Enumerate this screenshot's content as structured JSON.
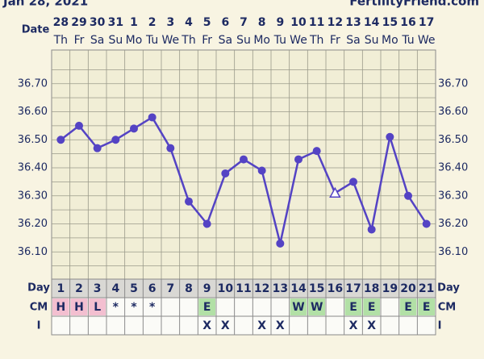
{
  "chart_data": {
    "type": "line",
    "header_date": "Jan 28, 2021",
    "site": "FertilityFriend.com",
    "date_label": "Date",
    "dates": [
      "28",
      "29",
      "30",
      "31",
      "1",
      "2",
      "3",
      "4",
      "5",
      "6",
      "7",
      "8",
      "9",
      "10",
      "11",
      "12",
      "13",
      "14",
      "15",
      "16",
      "17"
    ],
    "weekdays": [
      "Th",
      "Fr",
      "Sa",
      "Su",
      "Mo",
      "Tu",
      "We",
      "Th",
      "Fr",
      "Sa",
      "Su",
      "Mo",
      "Tu",
      "We",
      "Th",
      "Fr",
      "Sa",
      "Su",
      "Mo",
      "Tu",
      "We"
    ],
    "day_label": "Day",
    "categories": [
      "1",
      "2",
      "3",
      "4",
      "5",
      "6",
      "7",
      "8",
      "9",
      "10",
      "11",
      "12",
      "13",
      "14",
      "15",
      "16",
      "17",
      "18",
      "19",
      "20",
      "21"
    ],
    "values": [
      36.5,
      36.55,
      36.47,
      36.5,
      36.54,
      36.58,
      36.47,
      36.28,
      36.2,
      36.38,
      36.43,
      36.39,
      36.13,
      36.43,
      36.46,
      36.31,
      36.35,
      36.18,
      36.51,
      36.3,
      36.2
    ],
    "markers": [
      "circle",
      "circle",
      "circle",
      "circle",
      "circle",
      "circle",
      "circle",
      "circle",
      "circle",
      "circle",
      "circle",
      "circle",
      "circle",
      "circle",
      "circle",
      "triangle",
      "circle",
      "circle",
      "circle",
      "circle",
      "circle"
    ],
    "color": "#5443c4",
    "ylim": [
      36.0,
      36.8
    ],
    "yticks": [
      {
        "value": 36.1,
        "label": "36.10"
      },
      {
        "value": 36.2,
        "label": "36.20"
      },
      {
        "value": 36.3,
        "label": "36.30"
      },
      {
        "value": 36.4,
        "label": "36.40"
      },
      {
        "value": 36.5,
        "label": "36.50"
      },
      {
        "value": 36.6,
        "label": "36.60"
      },
      {
        "value": 36.7,
        "label": "36.70"
      }
    ],
    "grid": true,
    "grid_step": 0.05,
    "cm_label": "CM",
    "cm": [
      "H",
      "H",
      "L",
      "*",
      "*",
      "*",
      null,
      null,
      "E",
      null,
      null,
      null,
      null,
      "W",
      "W",
      null,
      "E",
      "E",
      null,
      "E",
      "E"
    ],
    "cm_colors": {
      "H": "#f3bfd0",
      "L": "#f3bfd0",
      "E": "#b2e0a6",
      "W": "#b2e0a6"
    },
    "i_label": "I",
    "intercourse": [
      null,
      null,
      null,
      null,
      null,
      null,
      null,
      null,
      "X",
      "X",
      null,
      "X",
      "X",
      null,
      null,
      null,
      "X",
      "X",
      null,
      null,
      null
    ]
  }
}
